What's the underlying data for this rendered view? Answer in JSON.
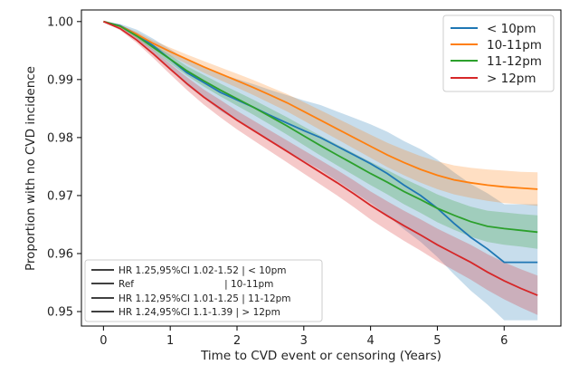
{
  "chart_data": {
    "type": "line",
    "xlabel": "Time to CVD event or censoring (Years)",
    "ylabel": "Proportion with no CVD incidence",
    "xlim": [
      -0.33,
      6.85
    ],
    "ylim": [
      0.9475,
      1.002
    ],
    "x_ticks": [
      "0",
      "1",
      "2",
      "3",
      "4",
      "5",
      "6"
    ],
    "y_ticks": [
      "1.00",
      "0.99",
      "0.98",
      "0.97",
      "0.96",
      "0.95"
    ],
    "grid": false,
    "legend": "top-right",
    "series": [
      {
        "name": "< 10pm",
        "color": "#1f77b4",
        "points": [
          [
            0,
            1.0
          ],
          [
            0.25,
            0.9993
          ],
          [
            0.5,
            0.9978
          ],
          [
            0.75,
            0.9958
          ],
          [
            1.0,
            0.9935
          ],
          [
            1.25,
            0.9912
          ],
          [
            1.5,
            0.9895
          ],
          [
            1.75,
            0.9878
          ],
          [
            2.0,
            0.9865
          ],
          [
            2.25,
            0.9852
          ],
          [
            2.5,
            0.9838
          ],
          [
            2.75,
            0.9825
          ],
          [
            3.0,
            0.9812
          ],
          [
            3.25,
            0.98
          ],
          [
            3.5,
            0.9785
          ],
          [
            3.75,
            0.977
          ],
          [
            4.0,
            0.9755
          ],
          [
            4.25,
            0.9738
          ],
          [
            4.5,
            0.9718
          ],
          [
            4.75,
            0.97
          ],
          [
            5.0,
            0.9678
          ],
          [
            5.25,
            0.9652
          ],
          [
            5.5,
            0.9628
          ],
          [
            5.75,
            0.9608
          ],
          [
            6.0,
            0.9585
          ],
          [
            6.5,
            0.9585
          ]
        ],
        "ci_width": [
          0,
          0.0003,
          0.0008,
          0.0012,
          0.0017,
          0.0022,
          0.0027,
          0.0032,
          0.0036,
          0.004,
          0.0044,
          0.0048,
          0.0052,
          0.0056,
          0.006,
          0.0064,
          0.0068,
          0.0072,
          0.0076,
          0.008,
          0.0084,
          0.0088,
          0.0092,
          0.0096,
          0.01,
          0.01
        ]
      },
      {
        "name": "10-11pm",
        "color": "#ff7f0e",
        "points": [
          [
            0,
            1.0
          ],
          [
            0.25,
            0.9992
          ],
          [
            0.5,
            0.9978
          ],
          [
            0.75,
            0.9962
          ],
          [
            1.0,
            0.9948
          ],
          [
            1.25,
            0.9935
          ],
          [
            1.5,
            0.9922
          ],
          [
            1.75,
            0.991
          ],
          [
            2.0,
            0.9898
          ],
          [
            2.25,
            0.9886
          ],
          [
            2.5,
            0.9873
          ],
          [
            2.75,
            0.986
          ],
          [
            3.0,
            0.9845
          ],
          [
            3.25,
            0.983
          ],
          [
            3.5,
            0.9815
          ],
          [
            3.75,
            0.98
          ],
          [
            4.0,
            0.9785
          ],
          [
            4.25,
            0.977
          ],
          [
            4.5,
            0.9757
          ],
          [
            4.75,
            0.9745
          ],
          [
            5.0,
            0.9735
          ],
          [
            5.25,
            0.9727
          ],
          [
            5.5,
            0.9722
          ],
          [
            5.75,
            0.9718
          ],
          [
            6.0,
            0.9715
          ],
          [
            6.25,
            0.9713
          ],
          [
            6.5,
            0.9711
          ]
        ],
        "ci_width": [
          0,
          0.0002,
          0.0004,
          0.0005,
          0.0007,
          0.0008,
          0.001,
          0.0011,
          0.0012,
          0.0013,
          0.0014,
          0.0015,
          0.0016,
          0.0017,
          0.0018,
          0.0019,
          0.002,
          0.0021,
          0.0022,
          0.0023,
          0.0024,
          0.0025,
          0.0026,
          0.0027,
          0.0028,
          0.0028,
          0.0029
        ]
      },
      {
        "name": "11-12pm",
        "color": "#2ca02c",
        "points": [
          [
            0,
            1.0
          ],
          [
            0.25,
            0.9992
          ],
          [
            0.5,
            0.9975
          ],
          [
            0.75,
            0.9955
          ],
          [
            1.0,
            0.9935
          ],
          [
            1.25,
            0.9915
          ],
          [
            1.5,
            0.9898
          ],
          [
            1.75,
            0.9882
          ],
          [
            2.0,
            0.9867
          ],
          [
            2.25,
            0.9852
          ],
          [
            2.5,
            0.9836
          ],
          [
            2.75,
            0.982
          ],
          [
            3.0,
            0.9803
          ],
          [
            3.25,
            0.9786
          ],
          [
            3.5,
            0.977
          ],
          [
            3.75,
            0.9754
          ],
          [
            4.0,
            0.9738
          ],
          [
            4.25,
            0.9723
          ],
          [
            4.5,
            0.9707
          ],
          [
            4.75,
            0.9693
          ],
          [
            5.0,
            0.9678
          ],
          [
            5.25,
            0.9666
          ],
          [
            5.5,
            0.9655
          ],
          [
            5.75,
            0.9647
          ],
          [
            6.0,
            0.9643
          ],
          [
            6.25,
            0.964
          ],
          [
            6.5,
            0.9637
          ]
        ],
        "ci_width": [
          0,
          0.0002,
          0.0004,
          0.0005,
          0.0007,
          0.0008,
          0.001,
          0.0011,
          0.0012,
          0.0013,
          0.0014,
          0.0015,
          0.0016,
          0.0017,
          0.0018,
          0.0019,
          0.002,
          0.0021,
          0.0022,
          0.0023,
          0.0024,
          0.0025,
          0.0026,
          0.0027,
          0.0028,
          0.0028,
          0.0029
        ]
      },
      {
        "name": "> 12pm",
        "color": "#d62728",
        "points": [
          [
            0,
            1.0
          ],
          [
            0.25,
            0.9988
          ],
          [
            0.5,
            0.9968
          ],
          [
            0.75,
            0.9944
          ],
          [
            1.0,
            0.9918
          ],
          [
            1.25,
            0.9893
          ],
          [
            1.5,
            0.987
          ],
          [
            1.75,
            0.985
          ],
          [
            2.0,
            0.983
          ],
          [
            2.25,
            0.9812
          ],
          [
            2.5,
            0.9794
          ],
          [
            2.75,
            0.9776
          ],
          [
            3.0,
            0.9758
          ],
          [
            3.25,
            0.974
          ],
          [
            3.5,
            0.9722
          ],
          [
            3.75,
            0.9703
          ],
          [
            4.0,
            0.9683
          ],
          [
            4.25,
            0.9665
          ],
          [
            4.5,
            0.9648
          ],
          [
            4.75,
            0.9632
          ],
          [
            5.0,
            0.9615
          ],
          [
            5.25,
            0.96
          ],
          [
            5.5,
            0.9585
          ],
          [
            5.75,
            0.9568
          ],
          [
            6.0,
            0.9553
          ],
          [
            6.25,
            0.954
          ],
          [
            6.5,
            0.9528
          ]
        ],
        "ci_width": [
          0,
          0.0003,
          0.0005,
          0.0007,
          0.0009,
          0.0011,
          0.0013,
          0.0015,
          0.0016,
          0.0017,
          0.0018,
          0.0019,
          0.002,
          0.0021,
          0.0022,
          0.0023,
          0.0024,
          0.0025,
          0.0026,
          0.0027,
          0.0028,
          0.0029,
          0.003,
          0.0031,
          0.0032,
          0.0033,
          0.0034
        ]
      }
    ],
    "hr_legend": [
      "HR 1.25,95%CI 1.02-1.52 | < 10pm",
      "Ref                              | 10-11pm",
      "HR 1.12,95%CI 1.01-1.25 | 11-12pm",
      "HR 1.24,95%CI 1.1-1.39 | > 12pm"
    ],
    "hr_legend_placement": "bottom-left"
  }
}
